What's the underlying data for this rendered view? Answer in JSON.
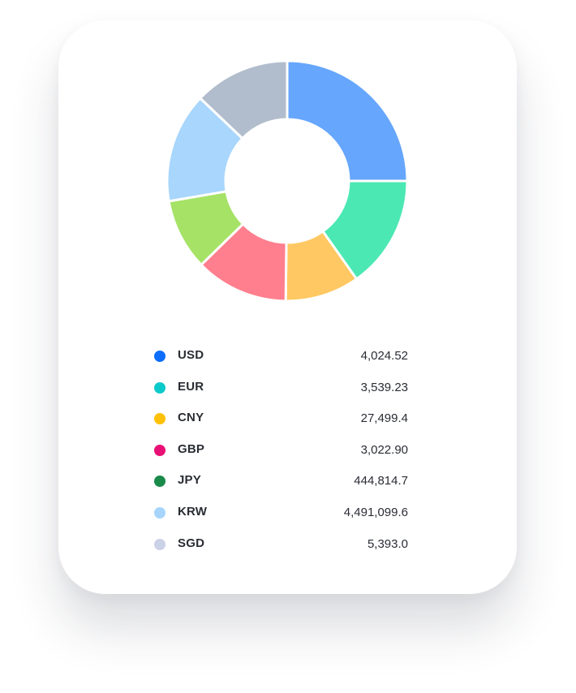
{
  "chart_data": {
    "type": "pie",
    "donut": true,
    "slices": [
      {
        "label": "USD",
        "value": 25.0,
        "color": "#66a6fc",
        "legend_color": "#0d6efd"
      },
      {
        "label": "EUR",
        "value": 15.2,
        "color": "#4be8b4",
        "legend_color": "#0dcaca"
      },
      {
        "label": "CNY",
        "value": 10.0,
        "color": "#ffc862",
        "legend_color": "#ffc107"
      },
      {
        "label": "GBP",
        "value": 12.5,
        "color": "#ff7f8e",
        "legend_color": "#e80f75"
      },
      {
        "label": "JPY",
        "value": 9.6,
        "color": "#a6e266",
        "legend_color": "#198a4a"
      },
      {
        "label": "KRW",
        "value": 14.8,
        "color": "#a8d6fc",
        "legend_color": "#a6d4fb"
      },
      {
        "label": "SGD",
        "value": 12.9,
        "color": "#b1bdcc",
        "legend_color": "#cbd1e6"
      }
    ]
  },
  "legend": [
    {
      "code": "USD",
      "amount": "4,024.52"
    },
    {
      "code": "EUR",
      "amount": "3,539.23"
    },
    {
      "code": "CNY",
      "amount": "27,499.4"
    },
    {
      "code": "GBP",
      "amount": "3,022.90"
    },
    {
      "code": "JPY",
      "amount": "444,814.7"
    },
    {
      "code": "KRW",
      "amount": "4,491,099.6"
    },
    {
      "code": "SGD",
      "amount": "5,393.0"
    }
  ]
}
